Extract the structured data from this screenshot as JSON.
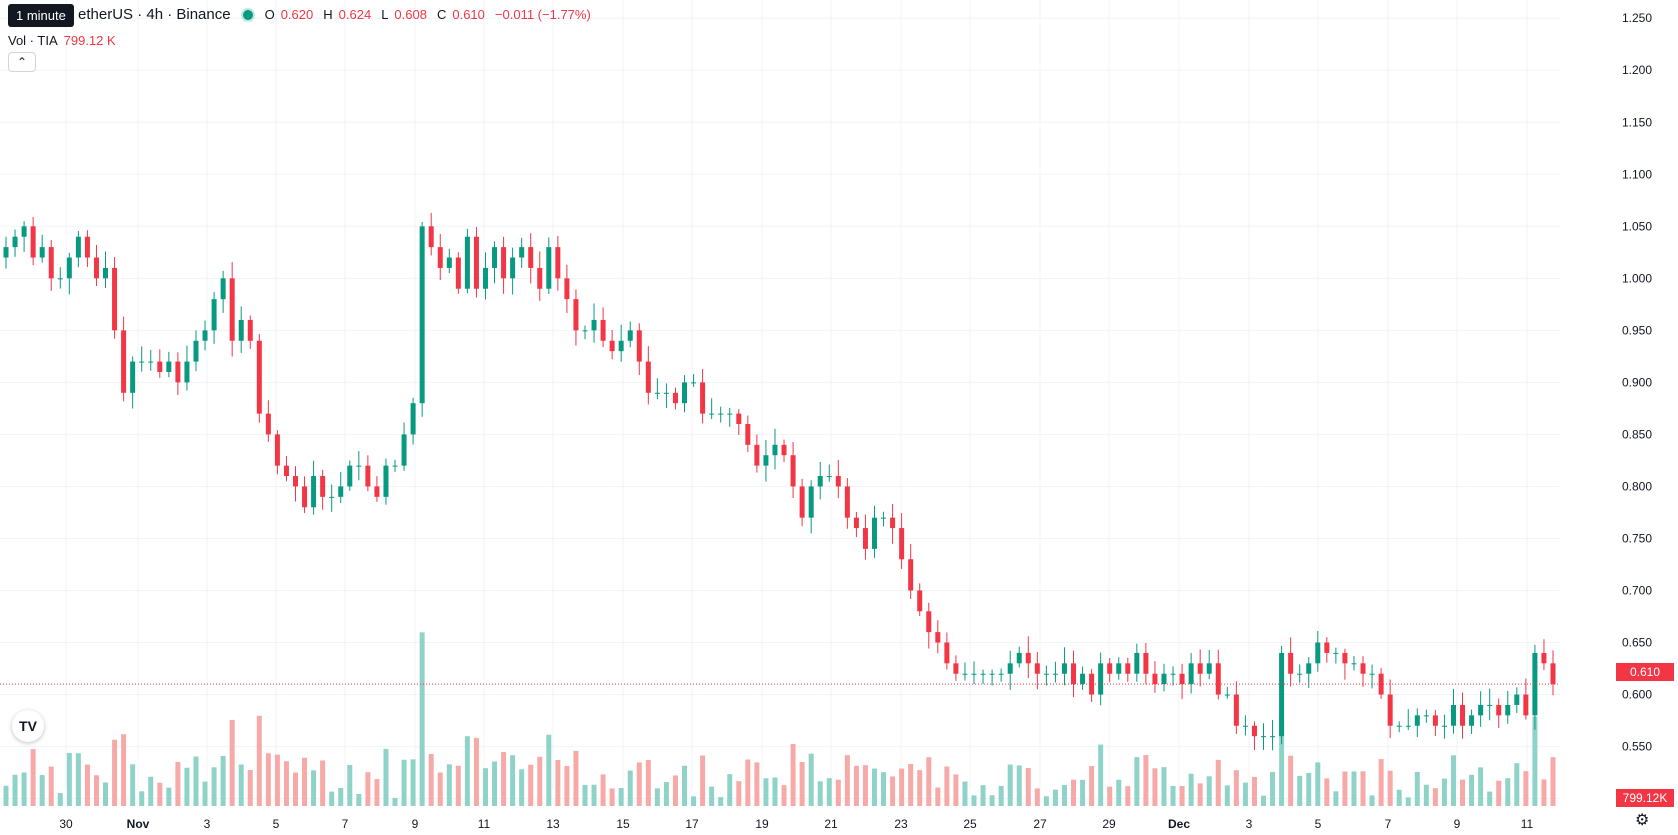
{
  "header": {
    "tooltip": "1 minute",
    "symbol_title": "etherUS · 4h · Binance",
    "ohlc": [
      {
        "key": "O",
        "value": "0.620"
      },
      {
        "key": "H",
        "value": "0.624"
      },
      {
        "key": "L",
        "value": "0.608"
      },
      {
        "key": "C",
        "value": "0.610"
      }
    ],
    "change": "−0.011 (−1.77%)",
    "volume_label": "Vol · TIA",
    "volume_value": "799.12 K",
    "collapse_icon": "chevron-up-icon"
  },
  "price_axis": {
    "ticks": [
      "1.250",
      "1.200",
      "1.150",
      "1.100",
      "1.050",
      "1.000",
      "0.950",
      "0.900",
      "0.850",
      "0.800",
      "0.750",
      "0.700",
      "0.650",
      "0.600",
      "0.550",
      "0.500"
    ],
    "last_price": "0.610",
    "last_volume": "799.12K"
  },
  "time_axis": {
    "ticks": [
      "30",
      "Nov",
      "3",
      "5",
      "7",
      "9",
      "11",
      "13",
      "15",
      "17",
      "19",
      "21",
      "23",
      "25",
      "27",
      "29",
      "Dec",
      "3",
      "5",
      "7",
      "9",
      "11"
    ]
  },
  "colors": {
    "up": "#089981",
    "down": "#f23645",
    "vol_up": "#8fd3c8",
    "vol_down": "#f7a9a7"
  },
  "chart_data": {
    "type": "candlestick",
    "y_range": [
      0.49,
      1.255
    ],
    "series_close": [
      1.03,
      1.04,
      1.05,
      1.02,
      1.03,
      1.0,
      1.0,
      1.02,
      1.04,
      1.02,
      1.0,
      1.01,
      0.95,
      0.89,
      0.92,
      0.92,
      0.92,
      0.91,
      0.92,
      0.9,
      0.92,
      0.94,
      0.95,
      0.98,
      1.0,
      0.94,
      0.96,
      0.94,
      0.87,
      0.85,
      0.82,
      0.81,
      0.8,
      0.78,
      0.81,
      0.79,
      0.79,
      0.8,
      0.82,
      0.82,
      0.8,
      0.79,
      0.82,
      0.82,
      0.85,
      0.88,
      1.05,
      1.03,
      1.01,
      1.02,
      0.99,
      1.04,
      0.99,
      1.01,
      1.03,
      1.0,
      1.02,
      1.03,
      1.01,
      0.99,
      1.03,
      1.0,
      0.98,
      0.95,
      0.95,
      0.96,
      0.94,
      0.93,
      0.94,
      0.95,
      0.92,
      0.89,
      0.89,
      0.89,
      0.88,
      0.9,
      0.9,
      0.87,
      0.87,
      0.87,
      0.87,
      0.86,
      0.84,
      0.82,
      0.83,
      0.84,
      0.83,
      0.8,
      0.77,
      0.8,
      0.81,
      0.81,
      0.8,
      0.77,
      0.76,
      0.74,
      0.77,
      0.77,
      0.76,
      0.73,
      0.7,
      0.68,
      0.66,
      0.65,
      0.63,
      0.62,
      0.62,
      0.62,
      0.62,
      0.62,
      0.62,
      0.63,
      0.64,
      0.63,
      0.62,
      0.62,
      0.62,
      0.63,
      0.61,
      0.62,
      0.6,
      0.63,
      0.62,
      0.63,
      0.62,
      0.64,
      0.62,
      0.61,
      0.62,
      0.62,
      0.61,
      0.63,
      0.62,
      0.63,
      0.6,
      0.6,
      0.57,
      0.57,
      0.56,
      0.56,
      0.56,
      0.64,
      0.62,
      0.62,
      0.63,
      0.65,
      0.64,
      0.64,
      0.63,
      0.63,
      0.62,
      0.62,
      0.6,
      0.57,
      0.57,
      0.57,
      0.58,
      0.58,
      0.57,
      0.57,
      0.59,
      0.57,
      0.58,
      0.59,
      0.59,
      0.58,
      0.59,
      0.6,
      0.58,
      0.64,
      0.63,
      0.61
    ]
  }
}
